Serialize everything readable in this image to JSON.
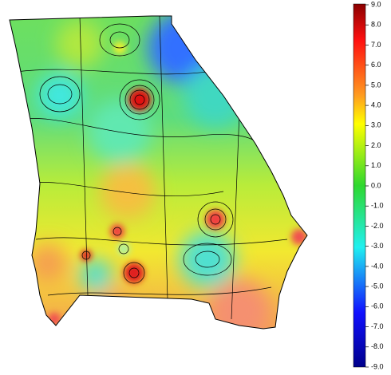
{
  "colorbar": {
    "range": [
      -9,
      9
    ],
    "ticks": [
      {
        "value": 9,
        "label": "9.0"
      },
      {
        "value": 8,
        "label": "8.0"
      },
      {
        "value": 7,
        "label": "7.0"
      },
      {
        "value": 6,
        "label": "6.0"
      },
      {
        "value": 5,
        "label": "5.0"
      },
      {
        "value": 4,
        "label": "4.0"
      },
      {
        "value": 3,
        "label": "3.0"
      },
      {
        "value": 2,
        "label": "2.0"
      },
      {
        "value": 1,
        "label": "1.0"
      },
      {
        "value": 0,
        "label": "0.0"
      },
      {
        "value": -1,
        "label": "-1.0"
      },
      {
        "value": -2,
        "label": "-2.0"
      },
      {
        "value": -3,
        "label": "-3.0"
      },
      {
        "value": -4,
        "label": "-4.0"
      },
      {
        "value": -5,
        "label": "-5.0"
      },
      {
        "value": -6,
        "label": "-6.0"
      },
      {
        "value": -7,
        "label": "-7.0"
      },
      {
        "value": -8,
        "label": "-8.0"
      },
      {
        "value": -9,
        "label": "-9.0"
      }
    ]
  }
}
